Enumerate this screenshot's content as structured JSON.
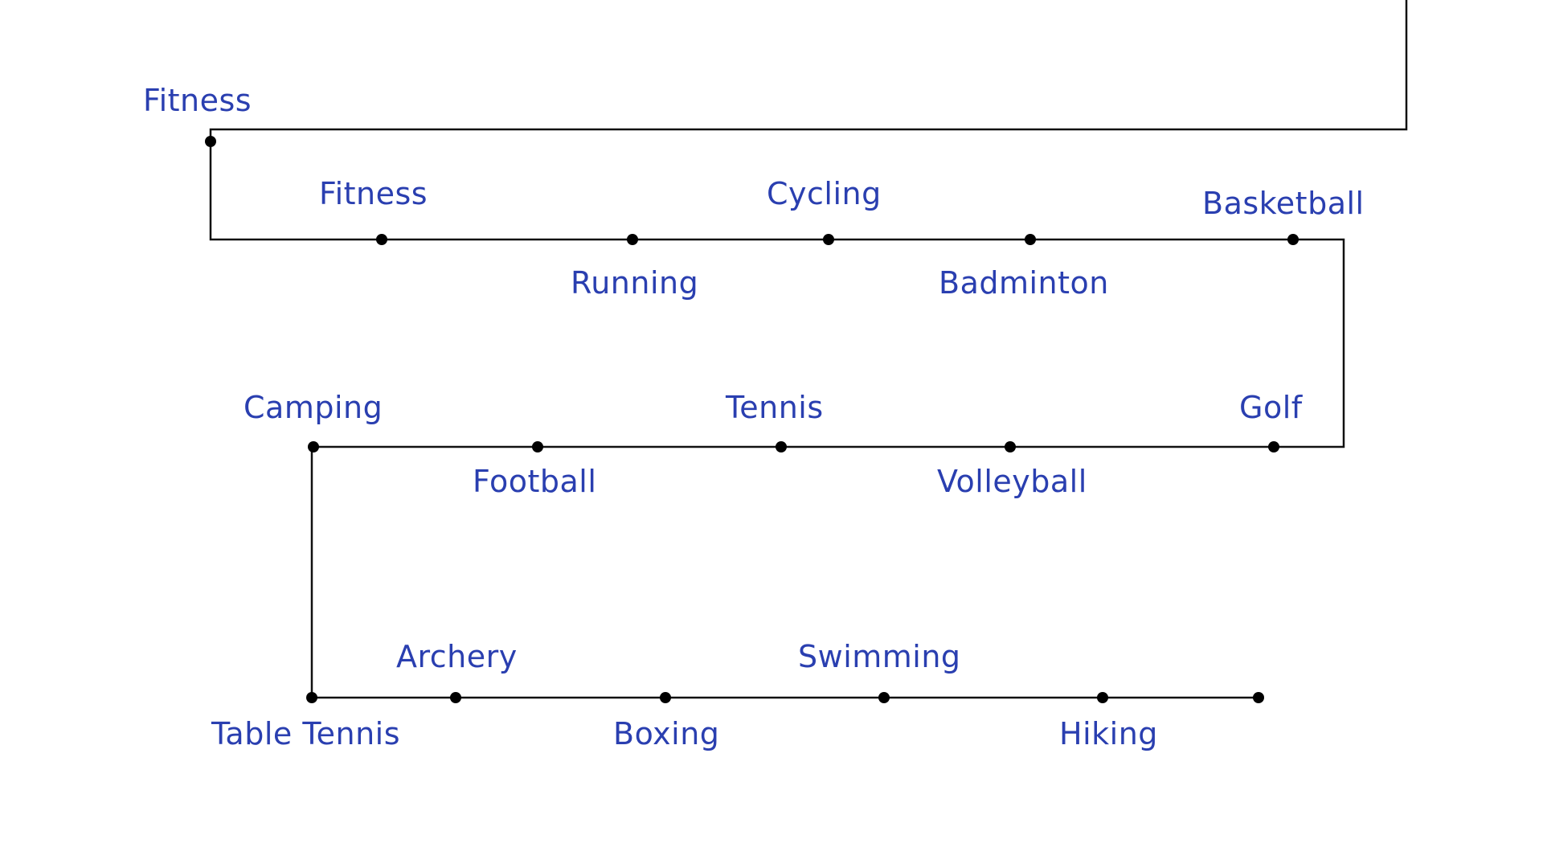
{
  "colors": {
    "label": "#2a3fb0",
    "line": "#111111",
    "dot": "#000000",
    "background": "#ffffff"
  },
  "labels": [
    "Fitness",
    "Fitness",
    "Running",
    "Cycling",
    "Badminton",
    "Basketball",
    "Golf",
    "Volleyball",
    "Tennis",
    "Football",
    "Camping",
    "Table Tennis",
    "Archery",
    "Boxing",
    "Swimming",
    "Hiking"
  ]
}
